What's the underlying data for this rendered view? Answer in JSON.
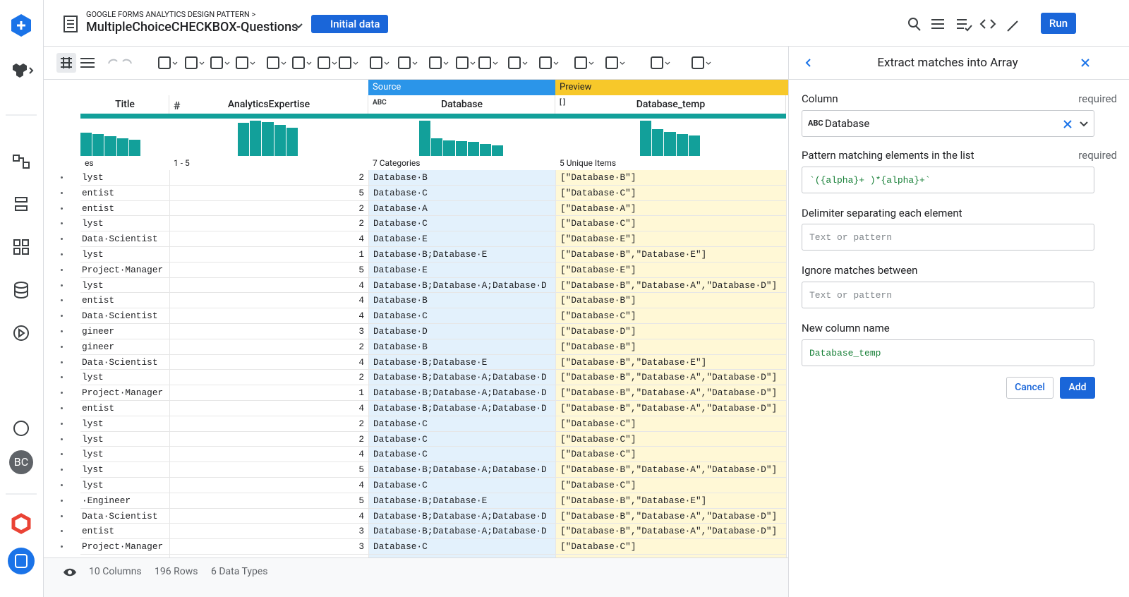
{
  "header": {
    "breadcrumb": "GOOGLE FORMS ANALYTICS DESIGN PATTERN >",
    "title": "MultipleChoiceCHECKBOX-Questions",
    "initial_button": "Initial data",
    "run_button": "Run"
  },
  "sidebar": {
    "avatar": "BC"
  },
  "grid": {
    "source_label": "Source",
    "preview_label": "Preview",
    "columns": [
      {
        "name": "Title",
        "summary": "es",
        "histogram": [
          33,
          31,
          28,
          25,
          23
        ]
      },
      {
        "icon": "#",
        "name": "AnalyticsExpertise",
        "summary": "1 - 5",
        "histogram": [
          47,
          50,
          48,
          44,
          40
        ]
      },
      {
        "icon": "ABC",
        "name": "Database",
        "summary": "7 Categories",
        "histogram": [
          50,
          25,
          22,
          21,
          20,
          17,
          15
        ]
      },
      {
        "icon": "[ ]",
        "name": "Database_temp",
        "summary": "5 Unique Items",
        "histogram": [
          50,
          38,
          34,
          31,
          29
        ]
      }
    ],
    "rows": [
      [
        "lyst",
        2,
        "Database·B",
        "[\"Database·B\"]"
      ],
      [
        "entist",
        5,
        "Database·C",
        "[\"Database·C\"]"
      ],
      [
        "entist",
        2,
        "Database·A",
        "[\"Database·A\"]"
      ],
      [
        "lyst",
        2,
        "Database·C",
        "[\"Database·C\"]"
      ],
      [
        "Data·Scientist",
        4,
        "Database·E",
        "[\"Database·E\"]"
      ],
      [
        "lyst",
        1,
        "Database·B;Database·E",
        "[\"Database·B\",\"Database·E\"]"
      ],
      [
        "Project·Manager",
        5,
        "Database·E",
        "[\"Database·E\"]"
      ],
      [
        "lyst",
        4,
        "Database·B;Database·A;Database·D",
        "[\"Database·B\",\"Database·A\",\"Database·D\"]"
      ],
      [
        "entist",
        4,
        "Database·B",
        "[\"Database·B\"]"
      ],
      [
        "Data·Scientist",
        4,
        "Database·C",
        "[\"Database·C\"]"
      ],
      [
        "gineer",
        3,
        "Database·D",
        "[\"Database·D\"]"
      ],
      [
        "gineer",
        2,
        "Database·B",
        "[\"Database·B\"]"
      ],
      [
        "Data·Scientist",
        4,
        "Database·B;Database·E",
        "[\"Database·B\",\"Database·E\"]"
      ],
      [
        "lyst",
        2,
        "Database·B;Database·A;Database·D",
        "[\"Database·B\",\"Database·A\",\"Database·D\"]"
      ],
      [
        "Project·Manager",
        1,
        "Database·B;Database·A;Database·D",
        "[\"Database·B\",\"Database·A\",\"Database·D\"]"
      ],
      [
        "entist",
        4,
        "Database·B;Database·A;Database·D",
        "[\"Database·B\",\"Database·A\",\"Database·D\"]"
      ],
      [
        "lyst",
        2,
        "Database·C",
        "[\"Database·C\"]"
      ],
      [
        "lyst",
        2,
        "Database·C",
        "[\"Database·C\"]"
      ],
      [
        "lyst",
        4,
        "Database·C",
        "[\"Database·C\"]"
      ],
      [
        "lyst",
        5,
        "Database·B;Database·A;Database·D",
        "[\"Database·B\",\"Database·A\",\"Database·D\"]"
      ],
      [
        "lyst",
        4,
        "Database·C",
        "[\"Database·C\"]"
      ],
      [
        "·Engineer",
        5,
        "Database·B;Database·E",
        "[\"Database·B\",\"Database·E\"]"
      ],
      [
        "Data·Scientist",
        4,
        "Database·B;Database·A;Database·D",
        "[\"Database·B\",\"Database·A\",\"Database·D\"]"
      ],
      [
        "entist",
        3,
        "Database·B;Database·A;Database·D",
        "[\"Database·B\",\"Database·A\",\"Database·D\"]"
      ],
      [
        "Project·Manager",
        3,
        "Database·C",
        "[\"Database·C\"]"
      ]
    ]
  },
  "footer": {
    "columns": "10 Columns",
    "rows": "196 Rows",
    "types": "6 Data Types"
  },
  "panel": {
    "title": "Extract matches into Array",
    "column_label": "Column",
    "column_required": "required",
    "column_icon": "ABC",
    "column_value": "Database",
    "pattern_label": "Pattern matching elements in the list",
    "pattern_required": "required",
    "pattern_value": "`({alpha}+ )*{alpha}+`",
    "delimiter_label": "Delimiter separating each element",
    "delimiter_placeholder": "Text or pattern",
    "ignore_label": "Ignore matches between",
    "ignore_placeholder": "Text or pattern",
    "newcol_label": "New column name",
    "newcol_value": "Database_temp",
    "cancel": "Cancel",
    "add": "Add"
  }
}
